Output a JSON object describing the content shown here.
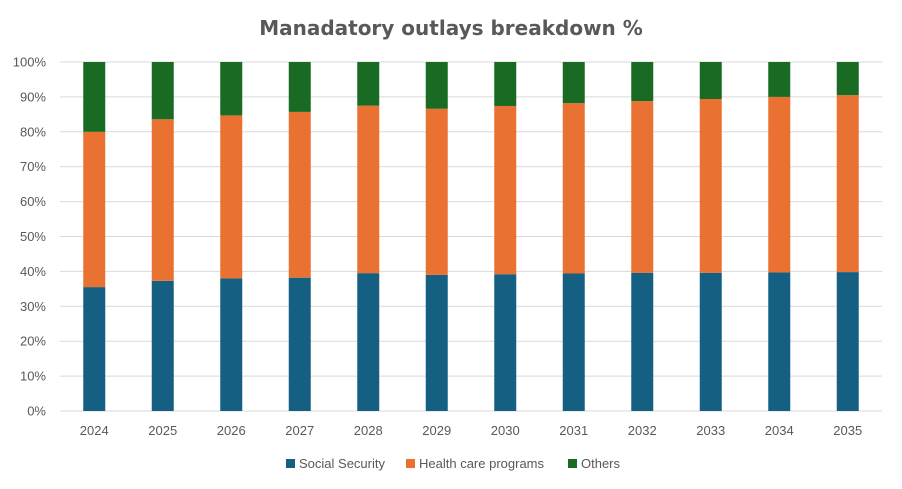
{
  "chart_data": {
    "type": "bar",
    "stacked": true,
    "title": "Manadatory outlays breakdown %",
    "xlabel": "",
    "ylabel": "",
    "ylim": [
      0,
      100
    ],
    "y_tick_step": 10,
    "y_tick_suffix": "%",
    "grid": true,
    "legend_position": "bottom",
    "categories": [
      "2024",
      "2025",
      "2026",
      "2027",
      "2028",
      "2029",
      "2030",
      "2031",
      "2032",
      "2033",
      "2034",
      "2035"
    ],
    "series": [
      {
        "name": "Social Security",
        "color": "#156082",
        "values": [
          35.5,
          37.3,
          38.0,
          38.2,
          39.5,
          39.0,
          39.2,
          39.4,
          39.6,
          39.6,
          39.7,
          39.8
        ]
      },
      {
        "name": "Health care programs",
        "color": "#e97132",
        "values": [
          44.5,
          46.3,
          46.7,
          47.5,
          48.0,
          47.6,
          48.2,
          48.8,
          49.2,
          49.8,
          50.3,
          50.7
        ]
      },
      {
        "name": "Others",
        "color": "#196b24",
        "values": [
          20.0,
          16.4,
          15.3,
          14.3,
          12.5,
          13.4,
          12.6,
          11.8,
          11.2,
          10.6,
          10.0,
          9.5
        ]
      }
    ]
  }
}
